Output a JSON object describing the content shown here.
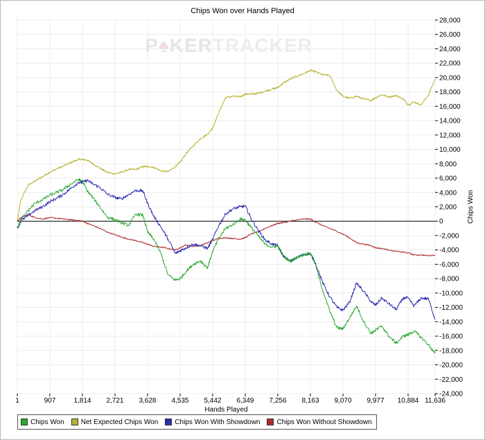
{
  "chart_data": {
    "type": "line",
    "title": "Chips Won over Hands Played",
    "xlabel": "Hands Played",
    "ylabel": "Chips Won",
    "watermark": {
      "part1": "P",
      "part2": "KER",
      "part3": "TRACKER",
      "symbol": "♠"
    },
    "xlim": [
      1,
      11636
    ],
    "ylim": [
      -24000,
      28000
    ],
    "x_ticks": [
      "1",
      "907",
      "1,814",
      "2,721",
      "3,628",
      "4,535",
      "5,442",
      "6,349",
      "7,256",
      "8,163",
      "9,070",
      "9,977",
      "10,884",
      "11,636"
    ],
    "x_tick_values": [
      1,
      907,
      1814,
      2721,
      3628,
      4535,
      5442,
      6349,
      7256,
      8163,
      9070,
      9977,
      10884,
      11636
    ],
    "y_ticks": [
      "28,000",
      "26,000",
      "24,000",
      "22,000",
      "20,000",
      "18,000",
      "16,000",
      "14,000",
      "12,000",
      "10,000",
      "8,000",
      "6,000",
      "4,000",
      "2,000",
      "0",
      "-2,000",
      "-4,000",
      "-6,000",
      "-8,000",
      "-10,000",
      "-12,000",
      "-14,000",
      "-16,000",
      "-18,000",
      "-20,000",
      "-22,000",
      "-24,000"
    ],
    "y_tick_values": [
      28000,
      26000,
      24000,
      22000,
      20000,
      18000,
      16000,
      14000,
      12000,
      10000,
      8000,
      6000,
      4000,
      2000,
      0,
      -2000,
      -4000,
      -6000,
      -8000,
      -10000,
      -12000,
      -14000,
      -16000,
      -18000,
      -20000,
      -22000,
      -24000
    ],
    "grid": true,
    "legend_position": "bottom-left",
    "series": [
      {
        "name": "Chips Won",
        "color": "#2aa830",
        "x": [
          1,
          100,
          300,
          500,
          700,
          900,
          1100,
          1300,
          1500,
          1700,
          1814,
          1950,
          2100,
          2300,
          2500,
          2721,
          2900,
          3100,
          3300,
          3500,
          3628,
          3800,
          4000,
          4200,
          4400,
          4535,
          4700,
          4900,
          5100,
          5300,
          5442,
          5600,
          5800,
          6000,
          6200,
          6349,
          6500,
          6700,
          6900,
          7100,
          7256,
          7400,
          7600,
          7800,
          8000,
          8163,
          8300,
          8500,
          8700,
          8900,
          9070,
          9250,
          9450,
          9650,
          9850,
          9977,
          10150,
          10350,
          10550,
          10750,
          10884,
          11050,
          11250,
          11450,
          11636
        ],
        "y": [
          -1000,
          200,
          1500,
          2500,
          3000,
          3600,
          4000,
          4500,
          5200,
          5800,
          5600,
          4200,
          3300,
          2000,
          600,
          200,
          -200,
          -600,
          1000,
          800,
          -1500,
          -2500,
          -4500,
          -7500,
          -8200,
          -8000,
          -7000,
          -6000,
          -5500,
          -6500,
          -4200,
          -2500,
          -1000,
          -500,
          300,
          200,
          -800,
          -2000,
          -3200,
          -3600,
          -3500,
          -4800,
          -5600,
          -5000,
          -4600,
          -4500,
          -6000,
          -9500,
          -12500,
          -14800,
          -15000,
          -13500,
          -11800,
          -14000,
          -15600,
          -15200,
          -14600,
          -16000,
          -17000,
          -16000,
          -15800,
          -15300,
          -16200,
          -17200,
          -18400
        ]
      },
      {
        "name": "Net Expected Chips Won",
        "color": "#b8b232",
        "x": [
          1,
          100,
          300,
          500,
          700,
          900,
          1100,
          1300,
          1500,
          1700,
          1814,
          1950,
          2100,
          2300,
          2500,
          2721,
          2900,
          3100,
          3300,
          3500,
          3628,
          3800,
          4000,
          4200,
          4400,
          4535,
          4700,
          4900,
          5100,
          5300,
          5442,
          5600,
          5800,
          6000,
          6200,
          6349,
          6500,
          6700,
          6900,
          7100,
          7256,
          7400,
          7600,
          7800,
          8000,
          8163,
          8300,
          8500,
          8700,
          8900,
          9070,
          9250,
          9450,
          9650,
          9850,
          9977,
          10150,
          10350,
          10550,
          10750,
          10884,
          11050,
          11250,
          11450,
          11636
        ],
        "y": [
          0,
          3000,
          5000,
          5600,
          6200,
          6800,
          7300,
          7700,
          8200,
          8600,
          8600,
          8500,
          8000,
          7400,
          6800,
          6600,
          6800,
          7200,
          7200,
          7600,
          7600,
          7500,
          7000,
          6900,
          7600,
          8200,
          9400,
          10500,
          11500,
          12100,
          13000,
          15000,
          17200,
          17400,
          17300,
          17700,
          17700,
          17800,
          18100,
          18400,
          18600,
          19200,
          19800,
          20200,
          20600,
          21000,
          20800,
          20400,
          20300,
          18200,
          17400,
          17100,
          17400,
          17000,
          16800,
          17200,
          17600,
          17300,
          17500,
          17000,
          16200,
          16600,
          16200,
          17600,
          19800
        ]
      },
      {
        "name": "Chips Won With Showdown",
        "color": "#2b2bb0",
        "x": [
          1,
          100,
          300,
          500,
          700,
          900,
          1100,
          1300,
          1500,
          1700,
          1814,
          1950,
          2100,
          2300,
          2500,
          2721,
          2900,
          3100,
          3300,
          3500,
          3628,
          3800,
          4000,
          4200,
          4400,
          4535,
          4700,
          4900,
          5100,
          5300,
          5442,
          5600,
          5800,
          6000,
          6200,
          6349,
          6500,
          6700,
          6900,
          7100,
          7256,
          7400,
          7600,
          7800,
          8000,
          8163,
          8300,
          8500,
          8700,
          8900,
          9070,
          9250,
          9450,
          9650,
          9850,
          9977,
          10150,
          10350,
          10550,
          10750,
          10884,
          11050,
          11250,
          11450,
          11636
        ],
        "y": [
          -1000,
          0,
          800,
          1500,
          2000,
          2700,
          3200,
          3800,
          4600,
          5400,
          5400,
          5700,
          5200,
          4700,
          3800,
          3300,
          3100,
          3700,
          4300,
          4200,
          2500,
          700,
          -800,
          -2500,
          -4500,
          -4100,
          -3700,
          -3200,
          -3400,
          -3800,
          -2500,
          -700,
          1000,
          1700,
          2000,
          2100,
          500,
          -1200,
          -2600,
          -3200,
          -3400,
          -4800,
          -5600,
          -5000,
          -4600,
          -4500,
          -5800,
          -8500,
          -10500,
          -12000,
          -12400,
          -11300,
          -8600,
          -9800,
          -11200,
          -11700,
          -10700,
          -11500,
          -12300,
          -10700,
          -10700,
          -11800,
          -10700,
          -10800,
          -13700
        ]
      },
      {
        "name": "Chips Won Without Showdown",
        "color": "#b02a2a",
        "x": [
          1,
          100,
          300,
          500,
          700,
          900,
          1100,
          1300,
          1500,
          1700,
          1814,
          1950,
          2100,
          2300,
          2500,
          2721,
          2900,
          3100,
          3300,
          3500,
          3628,
          3800,
          4000,
          4200,
          4400,
          4535,
          4700,
          4900,
          5100,
          5300,
          5442,
          5600,
          5800,
          6000,
          6200,
          6349,
          6500,
          6700,
          6900,
          7100,
          7256,
          7400,
          7600,
          7800,
          8000,
          8163,
          8300,
          8500,
          8700,
          8900,
          9070,
          9250,
          9450,
          9650,
          9850,
          9977,
          10150,
          10350,
          10550,
          10750,
          10884,
          11050,
          11250,
          11450,
          11636
        ],
        "y": [
          0,
          500,
          900,
          500,
          300,
          500,
          400,
          300,
          200,
          100,
          0,
          -300,
          -600,
          -1000,
          -1500,
          -1900,
          -2200,
          -2500,
          -2700,
          -3000,
          -3200,
          -3500,
          -3600,
          -3800,
          -4000,
          -3700,
          -3300,
          -3500,
          -3400,
          -3000,
          -2700,
          -2400,
          -2300,
          -2400,
          -2500,
          -2300,
          -1800,
          -1500,
          -1000,
          -600,
          -300,
          -200,
          0,
          200,
          300,
          300,
          -100,
          -600,
          -1000,
          -1400,
          -1800,
          -2300,
          -3000,
          -3200,
          -3400,
          -3700,
          -3800,
          -4000,
          -4200,
          -4300,
          -4400,
          -4700,
          -4700,
          -4800,
          -4700
        ]
      }
    ]
  }
}
